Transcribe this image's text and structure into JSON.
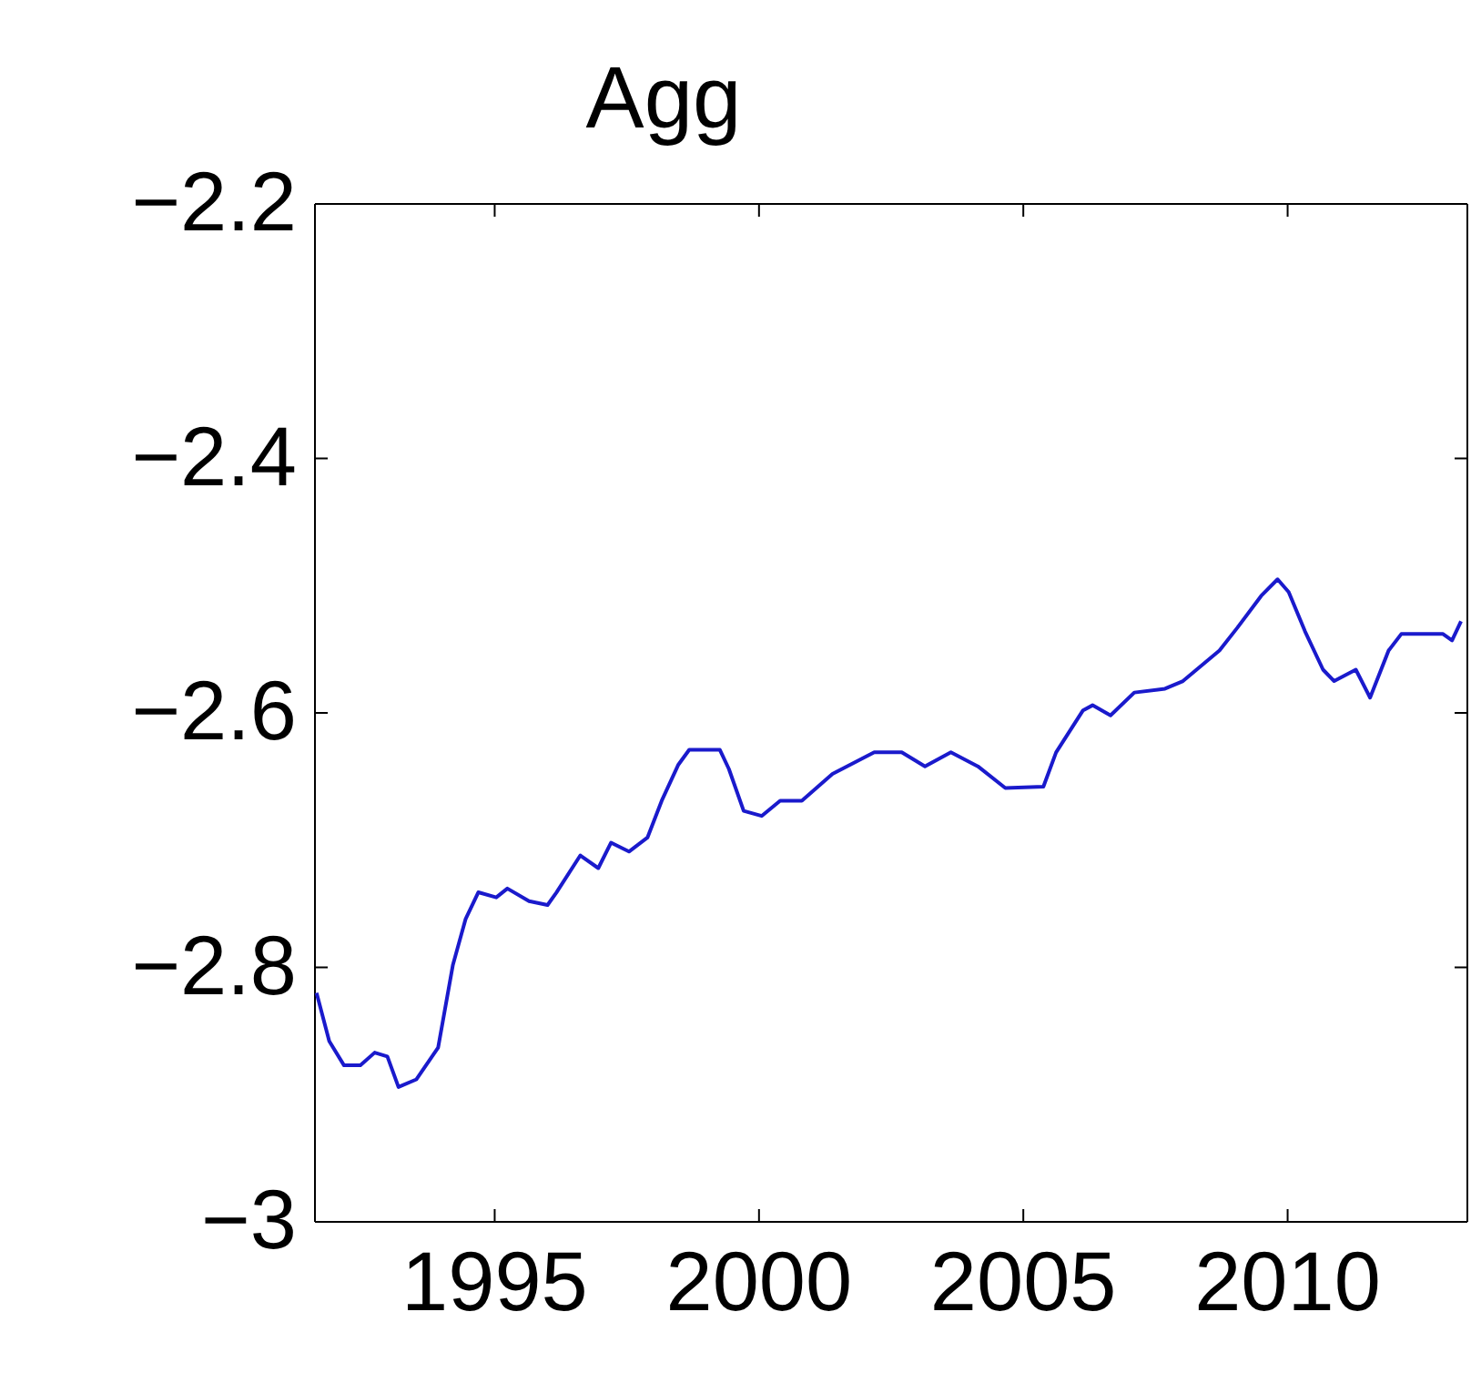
{
  "chart_data": {
    "type": "line",
    "title": "Agg",
    "x": [
      1991.63,
      1991.87,
      1992.15,
      1992.46,
      1992.73,
      1992.97,
      1993.18,
      1993.52,
      1993.93,
      1994.21,
      1994.45,
      1994.69,
      1995.03,
      1995.24,
      1995.65,
      1996.0,
      1996.17,
      1996.62,
      1996.96,
      1997.2,
      1997.54,
      1997.89,
      1998.16,
      1998.47,
      1998.68,
      1999.26,
      1999.43,
      1999.71,
      2000.05,
      2000.4,
      2000.81,
      2001.39,
      2002.18,
      2002.7,
      2003.14,
      2003.63,
      2004.14,
      2004.66,
      2005.38,
      2005.62,
      2006.13,
      2006.31,
      2006.65,
      2007.1,
      2007.68,
      2008.02,
      2008.71,
      2009.05,
      2009.5,
      2009.81,
      2010.02,
      2010.33,
      2010.67,
      2010.88,
      2011.29,
      2011.56,
      2011.91,
      2012.15,
      2012.94,
      2013.11,
      2013.28
    ],
    "series": [
      {
        "color": "#1a1acc",
        "values": [
          -2.82,
          -2.858,
          -2.877,
          -2.877,
          -2.867,
          -2.87,
          -2.894,
          -2.888,
          -2.863,
          -2.798,
          -2.762,
          -2.741,
          -2.745,
          -2.738,
          -2.748,
          -2.751,
          -2.741,
          -2.712,
          -2.722,
          -2.702,
          -2.709,
          -2.698,
          -2.669,
          -2.641,
          -2.629,
          -2.629,
          -2.644,
          -2.677,
          -2.681,
          -2.669,
          -2.669,
          -2.648,
          -2.631,
          -2.631,
          -2.642,
          -2.631,
          -2.642,
          -2.659,
          -2.658,
          -2.631,
          -2.598,
          -2.594,
          -2.602,
          -2.584,
          -2.581,
          -2.575,
          -2.551,
          -2.533,
          -2.508,
          -2.495,
          -2.505,
          -2.536,
          -2.566,
          -2.575,
          -2.566,
          -2.588,
          -2.551,
          -2.538,
          -2.538,
          -2.543,
          -2.528
        ]
      }
    ],
    "xlim": [
      1991.6,
      2013.4
    ],
    "xticks": [
      1995,
      2000,
      2005,
      2010
    ],
    "ylim": [
      -3,
      -2.2
    ],
    "yticks": [
      {
        "value": -3,
        "label": "−3"
      },
      {
        "value": -2.8,
        "label": "−2.8"
      },
      {
        "value": -2.6,
        "label": "−2.6"
      },
      {
        "value": -2.4,
        "label": "−2.4"
      },
      {
        "value": -2.2,
        "label": "−2.2"
      }
    ],
    "grid": false,
    "marker": "none",
    "line_style": "solid"
  }
}
